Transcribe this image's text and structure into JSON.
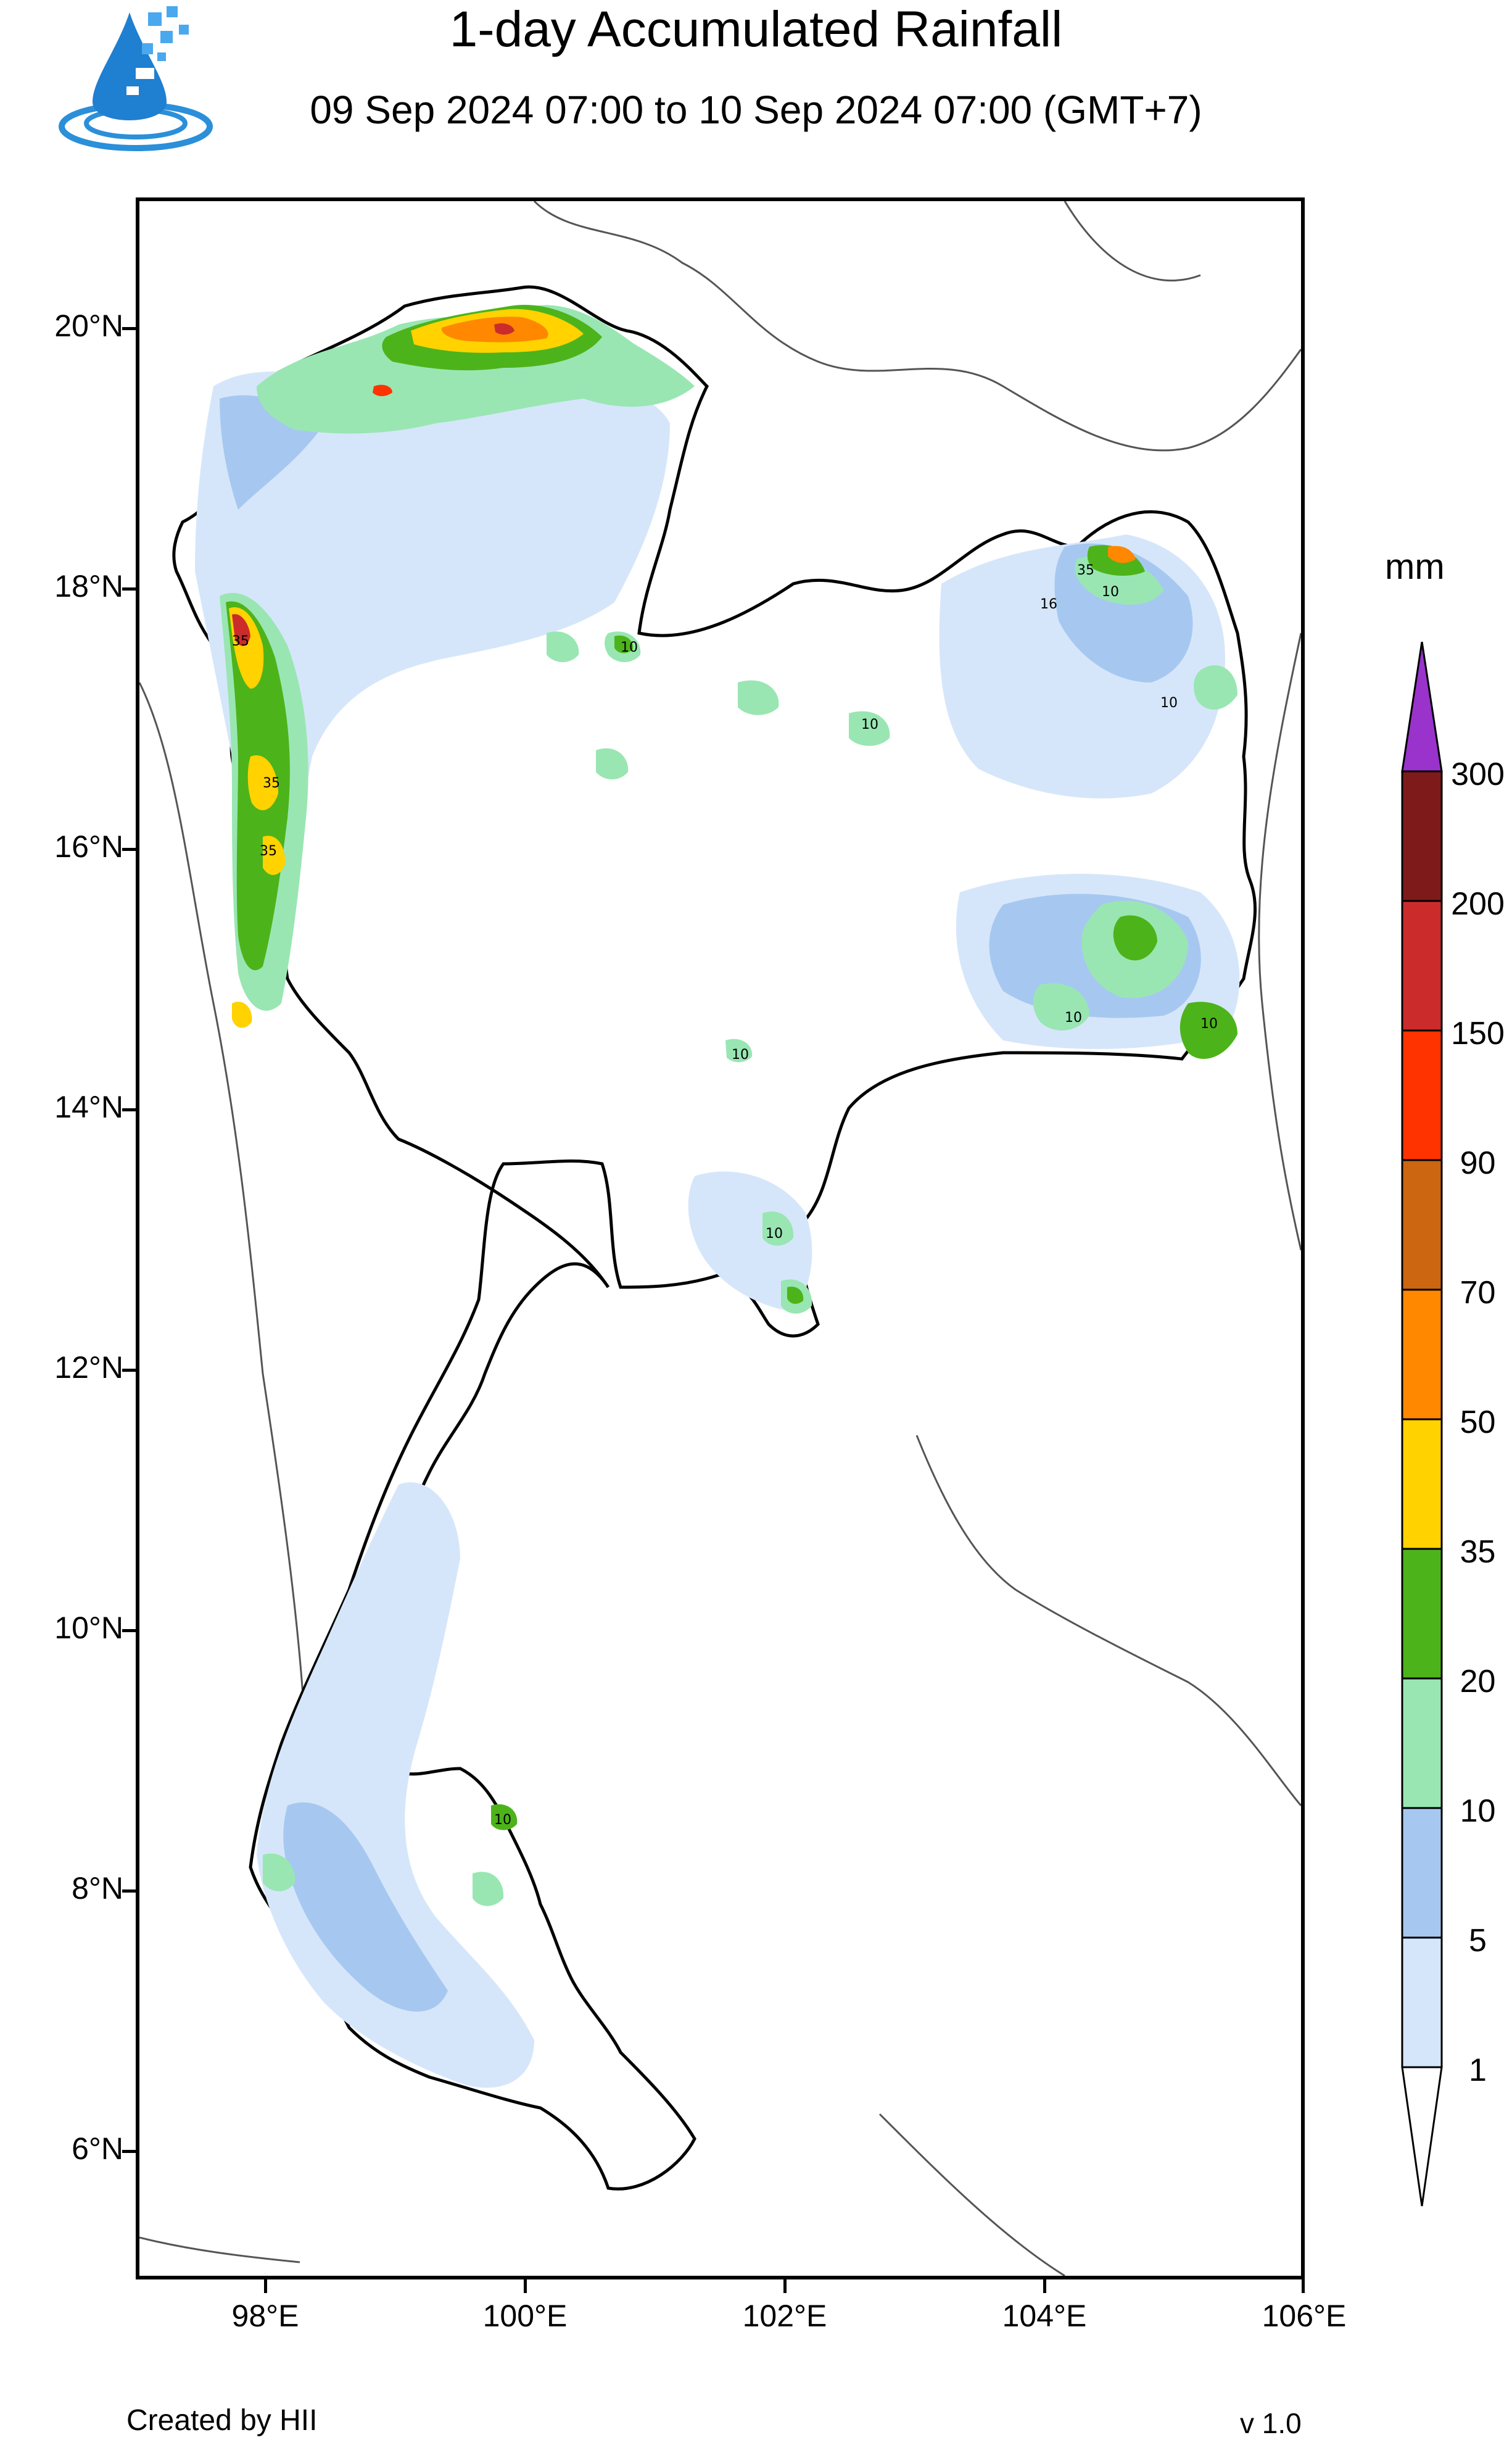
{
  "header": {
    "title": "1-day Accumulated Rainfall",
    "subtitle": "09 Sep 2024 07:00 to 10 Sep 2024 07:00 (GMT+7)"
  },
  "map": {
    "lon_range": [
      97,
      106
    ],
    "lat_range": [
      5,
      21
    ],
    "lat_ticks": [
      "20°N",
      "18°N",
      "16°N",
      "14°N",
      "12°N",
      "10°N",
      "8°N",
      "6°N"
    ],
    "lon_ticks": [
      "98°E",
      "100°E",
      "102°E",
      "104°E",
      "106°E"
    ],
    "contour_labels": [
      "35",
      "10",
      "35",
      "35",
      "10",
      "35",
      "16",
      "10",
      "10",
      "10",
      "10",
      "10",
      "10",
      "10"
    ]
  },
  "legend": {
    "unit": "mm",
    "levels": [
      "300",
      "200",
      "150",
      "90",
      "70",
      "50",
      "35",
      "20",
      "10",
      "5",
      "1"
    ],
    "colors": [
      "#9933cc",
      "#7f1a1a",
      "#cc2b2b",
      "#ff3300",
      "#cc6611",
      "#ff8800",
      "#ffd200",
      "#4db31a",
      "#99e6b3",
      "#a6c8f0",
      "#d6e6fa",
      "#ffffff"
    ]
  },
  "footer": {
    "credit": "Created by HII",
    "version": "v 1.0"
  }
}
